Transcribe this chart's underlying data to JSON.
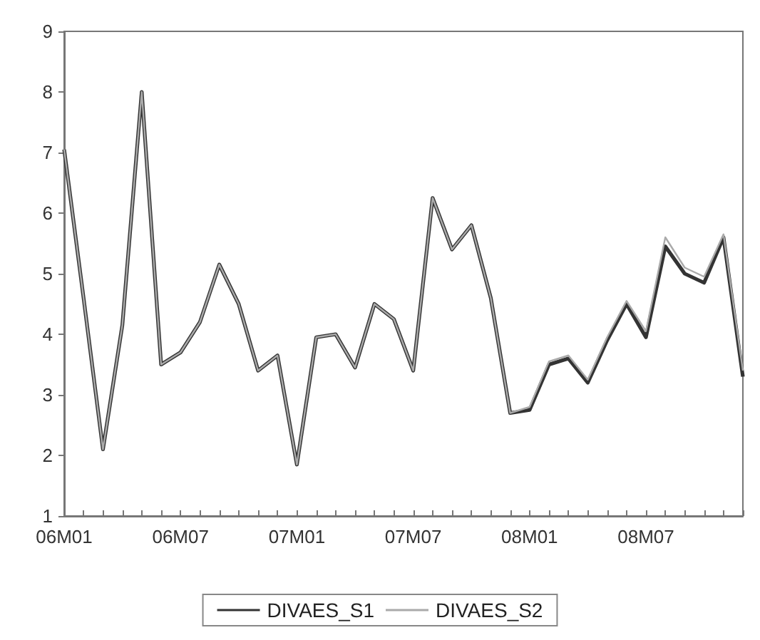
{
  "chart_data": {
    "type": "line",
    "categories": [
      "06M01",
      null,
      null,
      null,
      null,
      null,
      "06M07",
      null,
      null,
      null,
      null,
      null,
      "07M01",
      null,
      null,
      null,
      null,
      null,
      "07M07",
      null,
      null,
      null,
      null,
      null,
      "08M01",
      null,
      null,
      null,
      null,
      null,
      "08M07",
      null,
      null,
      null,
      null,
      null
    ],
    "series": [
      {
        "name": "DIVAES_S1",
        "color": "#333333",
        "values": [
          7.05,
          4.6,
          2.1,
          4.15,
          8.0,
          3.5,
          3.7,
          4.2,
          5.15,
          4.5,
          3.4,
          3.65,
          1.85,
          3.95,
          4.0,
          3.45,
          4.5,
          4.25,
          3.4,
          6.25,
          5.4,
          5.8,
          4.6,
          2.7,
          2.75,
          3.5,
          3.6,
          3.2,
          3.9,
          4.5,
          3.95,
          5.45,
          5.0,
          4.85,
          5.6,
          3.3
        ]
      },
      {
        "name": "DIVAES_S2",
        "color": "#aaaaaa",
        "values": [
          7.05,
          4.6,
          2.1,
          4.15,
          8.0,
          3.5,
          3.7,
          4.2,
          5.15,
          4.5,
          3.4,
          3.65,
          1.85,
          3.95,
          4.0,
          3.45,
          4.5,
          4.25,
          3.4,
          6.25,
          5.4,
          5.8,
          4.6,
          2.7,
          2.8,
          3.55,
          3.65,
          3.25,
          3.95,
          4.55,
          4.05,
          5.6,
          5.1,
          4.95,
          5.65,
          3.4
        ]
      }
    ],
    "ylim": [
      1,
      9
    ],
    "yticks": [
      1,
      2,
      3,
      4,
      5,
      6,
      7,
      8,
      9
    ],
    "grid": false,
    "legend": "bottom",
    "marker": "none",
    "line_style": "solid"
  }
}
